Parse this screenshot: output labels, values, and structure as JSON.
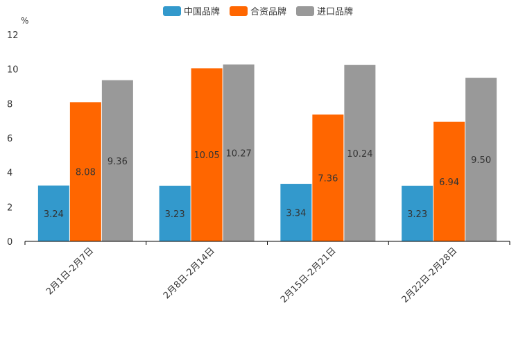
{
  "chart_data": {
    "type": "bar",
    "title": "",
    "ylabel": "%",
    "xlabel": "",
    "ylim": [
      0,
      12
    ],
    "yticks": [
      0,
      2,
      4,
      6,
      8,
      10,
      12
    ],
    "categories": [
      "2月1日-2月7日",
      "2月8日-2月14日",
      "2月15日-2月21日",
      "2月22日-2月28日"
    ],
    "series": [
      {
        "name": "中国品牌",
        "color": "#3399CC",
        "values": [
          3.24,
          3.23,
          3.34,
          3.23
        ],
        "labels": [
          "3.24",
          "3.23",
          "3.34",
          "3.23"
        ]
      },
      {
        "name": "合资品牌",
        "color": "#FF6600",
        "values": [
          8.08,
          10.05,
          7.36,
          6.94
        ],
        "labels": [
          "8.08",
          "10.05",
          "7.36",
          "6.94"
        ]
      },
      {
        "name": "进口品牌",
        "color": "#999999",
        "values": [
          9.36,
          10.27,
          10.24,
          9.5
        ],
        "labels": [
          "9.36",
          "10.27",
          "10.24",
          "9.50"
        ]
      }
    ],
    "legend_position": "top-center",
    "grid": false
  }
}
